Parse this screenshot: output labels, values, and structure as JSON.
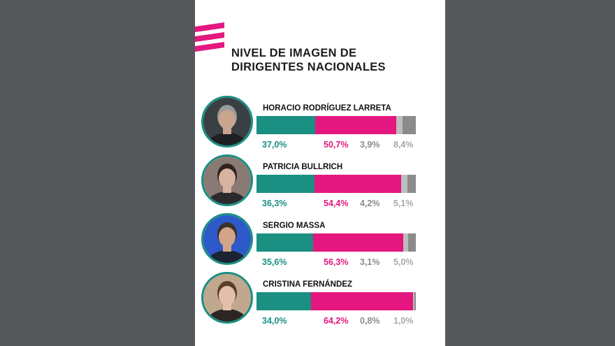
{
  "title_lines": [
    "NIVEL DE IMAGEN DE",
    "DIRIGENTES NACIONALES"
  ],
  "colors": {
    "positive": "#1a8f82",
    "negative": "#e3177f",
    "neutral": "#bdbdbd",
    "unknown": "#8b8b8b"
  },
  "chart_data": {
    "type": "bar",
    "orientation": "horizontal",
    "stacked": true,
    "title": "NIVEL DE IMAGEN DE DIRIGENTES NACIONALES",
    "categories": [
      "HORACIO RODRÍGUEZ LARRETA",
      "PATRICIA BULLRICH",
      "SERGIO MASSA",
      "CRISTINA FERNÁNDEZ"
    ],
    "series": [
      {
        "values": [
          37.0,
          36.3,
          35.6,
          34.0
        ],
        "labels": [
          "37,0%",
          "36,3%",
          "35,6%",
          "34,0%"
        ]
      },
      {
        "values": [
          50.7,
          54.4,
          56.3,
          64.2
        ],
        "labels": [
          "50,7%",
          "54,4%",
          "56,3%",
          "64,2%"
        ]
      },
      {
        "values": [
          3.9,
          4.2,
          3.1,
          0.8
        ],
        "labels": [
          "3,9%",
          "4,2%",
          "3,1%",
          "0,8%"
        ]
      },
      {
        "values": [
          8.4,
          5.1,
          5.0,
          1.0
        ],
        "labels": [
          "8,4%",
          "5,1%",
          "5,0%",
          "1,0%"
        ]
      }
    ],
    "xlim": [
      0,
      100
    ],
    "grid": false,
    "legend": "none"
  }
}
